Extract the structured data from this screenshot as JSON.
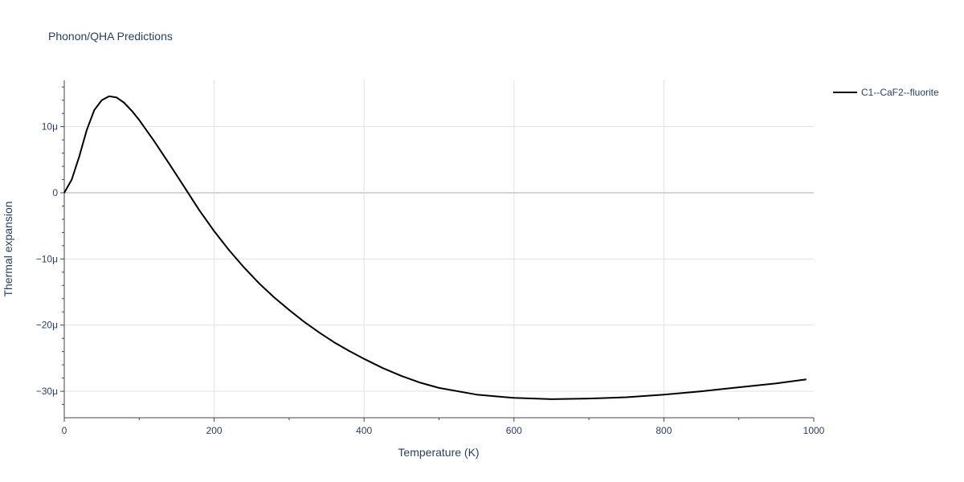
{
  "chart_data": {
    "type": "line",
    "title": "Phonon/QHA Predictions",
    "xlabel": "Temperature (K)",
    "ylabel": "Thermal expansion",
    "xlim": [
      0,
      1000
    ],
    "ylim": [
      -34,
      17
    ],
    "x_ticks": [
      0,
      200,
      400,
      600,
      800,
      1000
    ],
    "x_tick_labels": [
      "0",
      "200",
      "400",
      "600",
      "800",
      "1000"
    ],
    "y_ticks": [
      -30,
      -20,
      -10,
      0,
      10
    ],
    "y_tick_labels": [
      "−30μ",
      "−20μ",
      "−10μ",
      "0",
      "10μ"
    ],
    "grid": true,
    "legend_position": "top-right",
    "series": [
      {
        "name": "C1--CaF2--fluorite",
        "color": "#000000",
        "x": [
          0,
          10,
          20,
          30,
          40,
          50,
          60,
          70,
          80,
          90,
          100,
          120,
          140,
          160,
          180,
          200,
          220,
          240,
          260,
          280,
          300,
          320,
          340,
          360,
          380,
          400,
          425,
          450,
          475,
          500,
          550,
          600,
          650,
          700,
          750,
          800,
          850,
          900,
          950,
          990
        ],
        "values": [
          0,
          2.0,
          5.5,
          9.5,
          12.5,
          14.0,
          14.6,
          14.4,
          13.6,
          12.4,
          11.0,
          7.8,
          4.4,
          0.9,
          -2.6,
          -5.8,
          -8.7,
          -11.3,
          -13.7,
          -15.8,
          -17.7,
          -19.5,
          -21.1,
          -22.6,
          -23.9,
          -25.1,
          -26.5,
          -27.7,
          -28.7,
          -29.5,
          -30.5,
          -31.0,
          -31.2,
          -31.1,
          -30.9,
          -30.5,
          -30.0,
          -29.4,
          -28.8,
          -28.2
        ]
      }
    ]
  }
}
